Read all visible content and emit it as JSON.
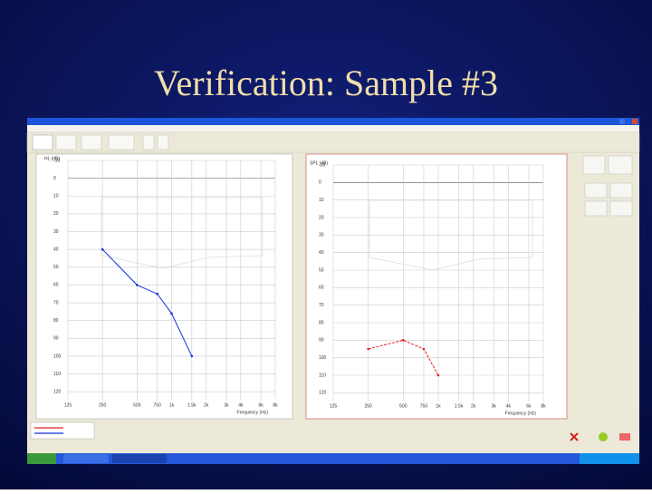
{
  "title": "Verification: Sample #3",
  "chart_data": [
    {
      "type": "line",
      "ylabel": "HL (dB)",
      "xlabel": "Frequency (Hz)",
      "log_x": true,
      "y_reversed": true,
      "xlim": [
        125,
        8000
      ],
      "ylim": [
        -10,
        125
      ],
      "xticks": [
        125,
        250,
        500,
        750,
        {
          "value": 1000,
          "label": "1k"
        },
        {
          "value": 1500,
          "label": "1.5k"
        },
        {
          "value": 2000,
          "label": "2k"
        },
        {
          "value": 3000,
          "label": "3k"
        },
        {
          "value": 4000,
          "label": "4k"
        },
        {
          "value": 6000,
          "label": "6k"
        },
        {
          "value": 8000,
          "label": "8k"
        }
      ],
      "yticks": [
        -10,
        0,
        10,
        20,
        30,
        40,
        50,
        60,
        70,
        80,
        90,
        100,
        110,
        120
      ],
      "grid": true,
      "series": [
        {
          "color": "#1030e0",
          "x": [
            250,
            500,
            750,
            1000,
            1500
          ],
          "values": [
            40,
            60,
            65,
            76,
            100
          ]
        }
      ]
    },
    {
      "type": "line",
      "ylabel": "SPL (dB)",
      "xlabel": "Frequency (Hz)",
      "log_x": true,
      "y_reversed": true,
      "xlim": [
        125,
        8000
      ],
      "ylim": [
        -10,
        125
      ],
      "xticks": [
        125,
        250,
        500,
        750,
        {
          "value": 1000,
          "label": "1k"
        },
        {
          "value": 1500,
          "label": "1.5k"
        },
        {
          "value": 2000,
          "label": "2k"
        },
        {
          "value": 3000,
          "label": "3k"
        },
        {
          "value": 4000,
          "label": "4k"
        },
        {
          "value": 6000,
          "label": "6k"
        },
        {
          "value": 8000,
          "label": "8k"
        }
      ],
      "yticks": [
        -10,
        0,
        10,
        20,
        30,
        40,
        50,
        60,
        70,
        80,
        90,
        100,
        110,
        120
      ],
      "grid": true,
      "series": [
        {
          "color": "#e82020",
          "x": [
            250,
            500,
            750,
            1000
          ],
          "values": [
            95,
            90,
            95,
            110
          ]
        }
      ]
    }
  ]
}
